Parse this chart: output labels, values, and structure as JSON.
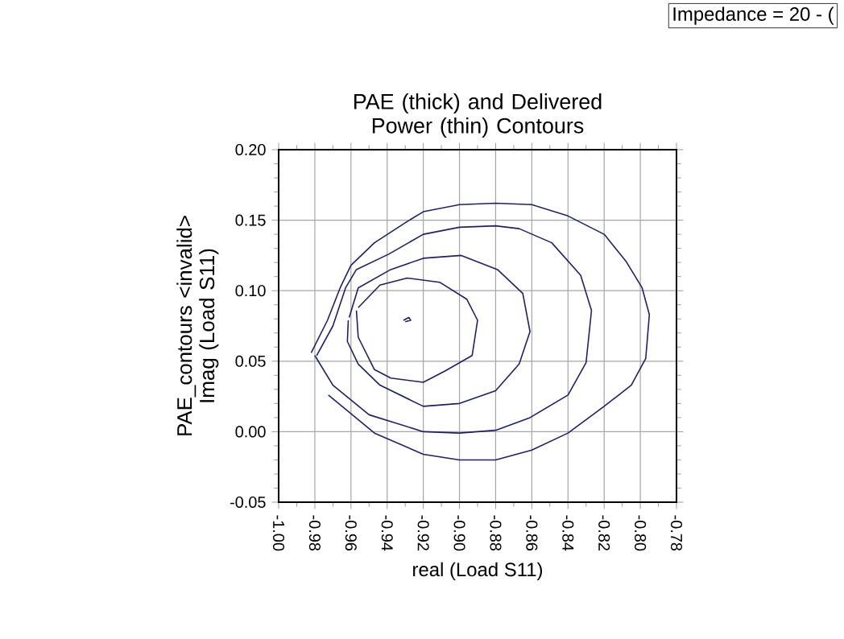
{
  "chart_data": {
    "type": "line",
    "title": "PAE (thick) and Delivered Power (thin) Contours",
    "xlabel": "real (Load S11)",
    "ylabel": "PAE_contours <invalid> Imag (Load S11)",
    "annotations": [
      "Impedance = 20 - ("
    ],
    "xlim": [
      -1.0,
      -0.78
    ],
    "ylim": [
      -0.05,
      0.2
    ],
    "xticks": [
      {
        "value": -1.0,
        "label": "-1.00"
      },
      {
        "value": -0.98,
        "label": "-0.98"
      },
      {
        "value": -0.96,
        "label": "-0.96"
      },
      {
        "value": -0.94,
        "label": "-0.94"
      },
      {
        "value": -0.92,
        "label": "-0.92"
      },
      {
        "value": -0.9,
        "label": "-0.90"
      },
      {
        "value": -0.88,
        "label": "-0.88"
      },
      {
        "value": -0.86,
        "label": "-0.86"
      },
      {
        "value": -0.84,
        "label": "-0.84"
      },
      {
        "value": -0.82,
        "label": "-0.82"
      },
      {
        "value": -0.8,
        "label": "-0.80"
      },
      {
        "value": -0.78,
        "label": "-0.78"
      }
    ],
    "yticks": [
      {
        "value": -0.05,
        "label": "-0.05"
      },
      {
        "value": 0.0,
        "label": "0.00"
      },
      {
        "value": 0.05,
        "label": "0.05"
      },
      {
        "value": 0.1,
        "label": "0.10"
      },
      {
        "value": 0.15,
        "label": "0.15"
      },
      {
        "value": 0.2,
        "label": "0.20"
      }
    ],
    "grid": true,
    "series": [
      {
        "color": "#1f1f6b",
        "x": [
          -0.9725,
          -0.947,
          -0.92,
          -0.9,
          -0.88,
          -0.86,
          -0.84,
          -0.82,
          -0.805,
          -0.797,
          -0.795,
          -0.799,
          -0.808,
          -0.82,
          -0.84,
          -0.86,
          -0.88,
          -0.9,
          -0.92,
          -0.929,
          -0.947,
          -0.96,
          -0.966,
          -0.973,
          -0.982
        ],
        "values": [
          0.026,
          -0.001,
          -0.016,
          -0.02,
          -0.02,
          -0.013,
          -0.001,
          0.018,
          0.033,
          0.052,
          0.083,
          0.102,
          0.121,
          0.14,
          0.153,
          0.161,
          0.162,
          0.161,
          0.156,
          0.149,
          0.134,
          0.118,
          0.102,
          0.079,
          0.056
        ]
      },
      {
        "color": "#1f1f6b",
        "x": [
          -0.98,
          -0.97,
          -0.95,
          -0.92,
          -0.9,
          -0.88,
          -0.861,
          -0.84,
          -0.83,
          -0.827,
          -0.833,
          -0.849,
          -0.867,
          -0.88,
          -0.9,
          -0.92,
          -0.939,
          -0.957,
          -0.963,
          -0.97,
          -0.979
        ],
        "values": [
          0.054,
          0.033,
          0.012,
          0.0,
          -0.001,
          0.001,
          0.01,
          0.026,
          0.049,
          0.086,
          0.111,
          0.134,
          0.144,
          0.146,
          0.145,
          0.14,
          0.126,
          0.115,
          0.102,
          0.075,
          0.054
        ]
      },
      {
        "color": "#1f1f6b",
        "x": [
          -0.9615,
          -0.962,
          -0.956,
          -0.944,
          -0.92,
          -0.9,
          -0.88,
          -0.867,
          -0.861,
          -0.865,
          -0.879,
          -0.899,
          -0.92,
          -0.938,
          -0.956,
          -0.961
        ],
        "values": [
          0.079,
          0.064,
          0.048,
          0.033,
          0.018,
          0.02,
          0.029,
          0.048,
          0.071,
          0.098,
          0.115,
          0.125,
          0.123,
          0.115,
          0.102,
          0.081
        ]
      },
      {
        "color": "#1f1f6b",
        "x": [
          -0.957,
          -0.956,
          -0.947,
          -0.938,
          -0.92,
          -0.908,
          -0.893,
          -0.89,
          -0.896,
          -0.911,
          -0.929,
          -0.944,
          -0.956
        ],
        "values": [
          0.086,
          0.067,
          0.044,
          0.038,
          0.035,
          0.043,
          0.054,
          0.079,
          0.094,
          0.106,
          0.109,
          0.104,
          0.088
        ]
      },
      {
        "color": "#1f1f6b",
        "x": [
          -0.931,
          -0.928,
          -0.927,
          -0.93
        ],
        "values": [
          0.079,
          0.081,
          0.079,
          0.078
        ]
      }
    ]
  }
}
